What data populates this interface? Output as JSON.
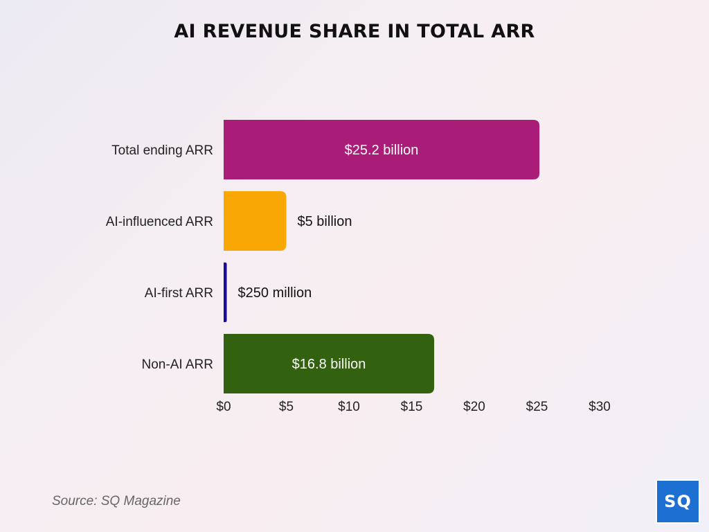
{
  "chart_data": {
    "type": "bar",
    "orientation": "horizontal",
    "title": "AI REVENUE SHARE IN TOTAL ARR",
    "categories": [
      "Total ending ARR",
      "AI-influenced ARR",
      "AI-first ARR",
      "Non-AI ARR"
    ],
    "values": [
      25.2,
      5,
      0.25,
      16.8
    ],
    "data_labels": [
      "$25.2 billion",
      "$5 billion",
      "$250 million",
      "$16.8 billion"
    ],
    "label_inside": [
      true,
      false,
      false,
      true
    ],
    "colors": [
      "#a91d78",
      "#f9a704",
      "#1a0d94",
      "#326210"
    ],
    "xlim": [
      0,
      30
    ],
    "xticks": [
      0,
      5,
      10,
      15,
      20,
      25,
      30
    ],
    "xtick_labels": [
      "$0",
      "$5",
      "$10",
      "$15",
      "$20",
      "$25",
      "$30"
    ],
    "xlabel": "",
    "ylabel": "",
    "grid": false
  },
  "source": "Source: SQ Magazine",
  "logo_text": "SQ"
}
